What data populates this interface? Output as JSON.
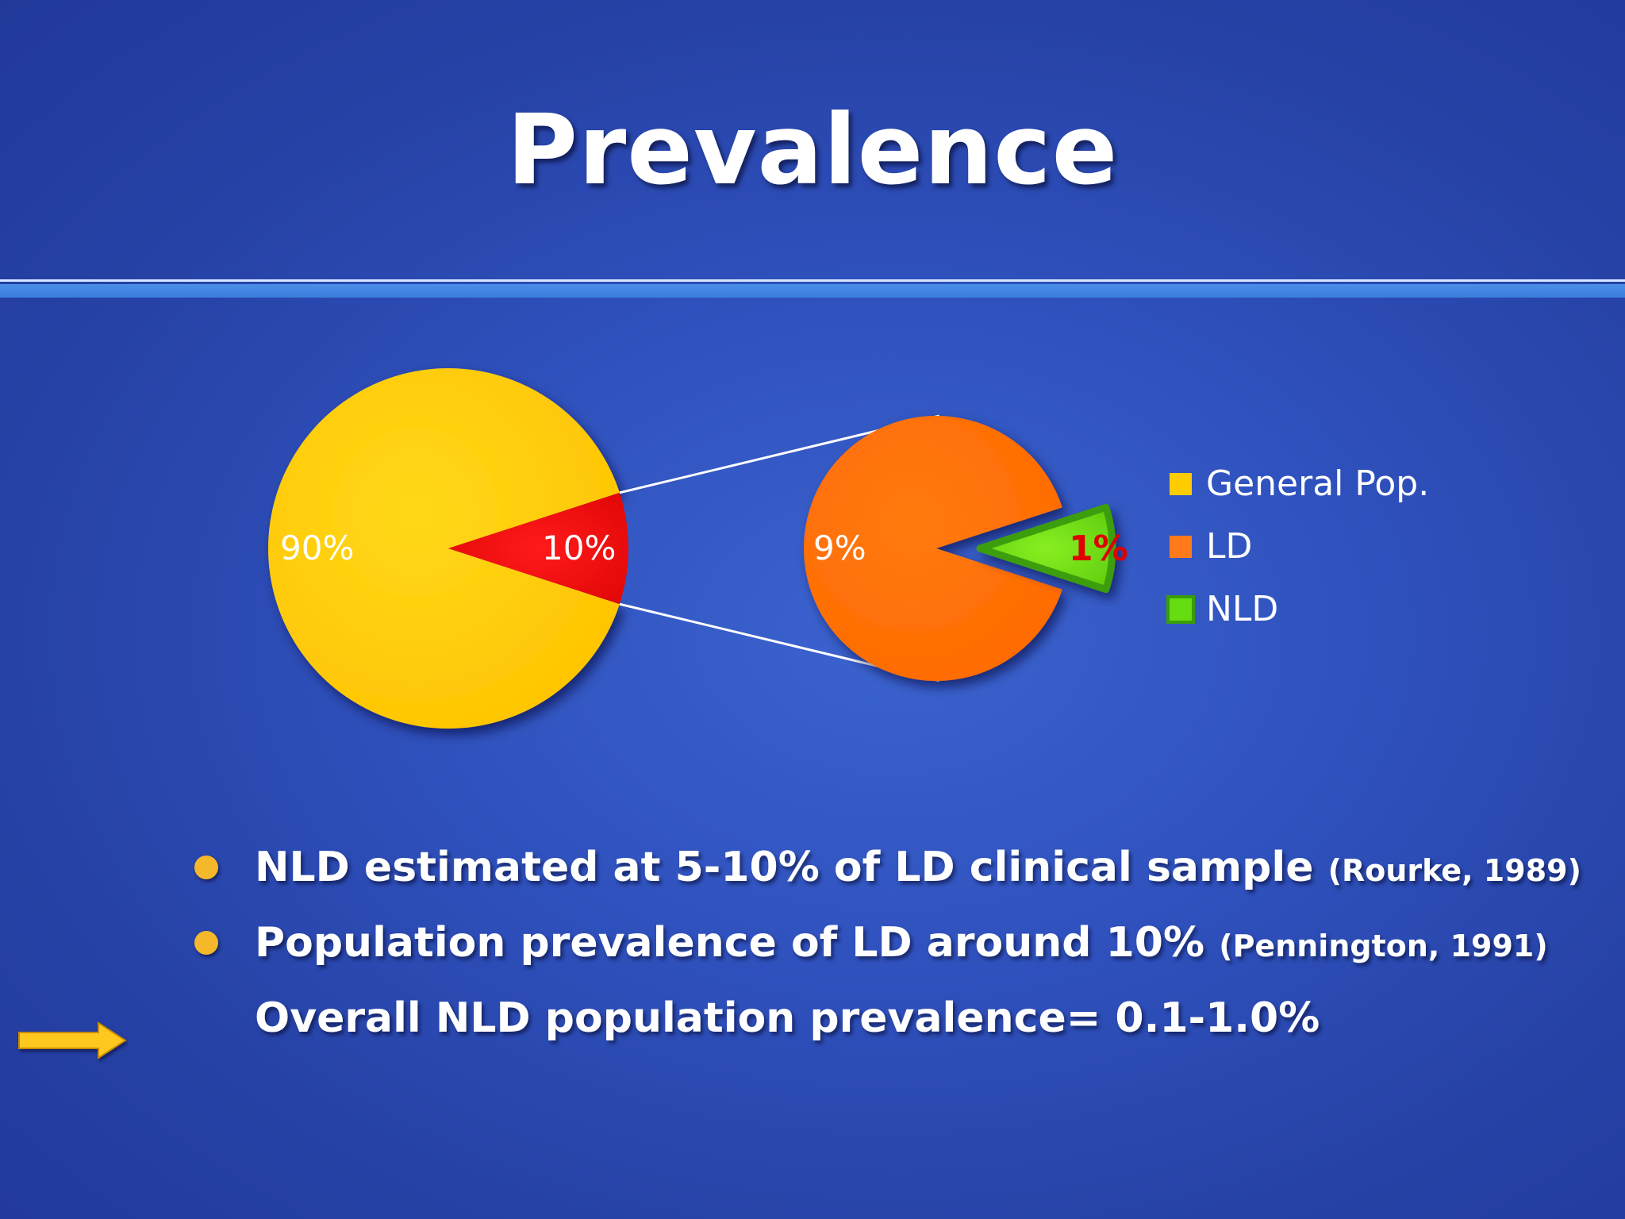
{
  "slide": {
    "title": "Prevalence"
  },
  "chart_data": [
    {
      "type": "pie",
      "slices": [
        {
          "label": "90%",
          "value": 90,
          "category": "General Pop.",
          "color": "#ffcc00"
        },
        {
          "label": "10%",
          "value": 10,
          "category": "LD",
          "color": "#ee0a0a"
        }
      ]
    },
    {
      "type": "pie",
      "slices": [
        {
          "label": "9%",
          "value": 9,
          "category": "LD",
          "color": "#ff6e00"
        },
        {
          "label": "1%",
          "value": 1,
          "category": "NLD",
          "color": "#66dd11"
        }
      ]
    }
  ],
  "legend": [
    {
      "label": "General Pop.",
      "color": "#ffcc00"
    },
    {
      "label": "LD",
      "color": "#ff7a1a"
    },
    {
      "label": "NLD",
      "color": "#66dd11"
    }
  ],
  "bullets": [
    {
      "text": "NLD estimated at 5-10% of LD clinical sample ",
      "citation": "(Rourke, 1989)"
    },
    {
      "text": "Population prevalence of LD around 10% ",
      "citation": "(Pennington, 1991)"
    }
  ],
  "conclusion": "Overall NLD population prevalence= 0.1-1.0%"
}
